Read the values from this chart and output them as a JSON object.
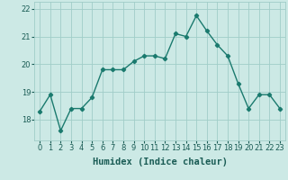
{
  "x": [
    0,
    1,
    2,
    3,
    4,
    5,
    6,
    7,
    8,
    9,
    10,
    11,
    12,
    13,
    14,
    15,
    16,
    17,
    18,
    19,
    20,
    21,
    22,
    23
  ],
  "y": [
    18.3,
    18.9,
    17.6,
    18.4,
    18.4,
    18.8,
    19.8,
    19.8,
    19.8,
    20.1,
    20.3,
    20.3,
    20.2,
    21.1,
    21.0,
    21.75,
    21.2,
    20.7,
    20.3,
    19.3,
    18.4,
    18.9,
    18.9,
    18.4
  ],
  "line_color": "#1a7a6e",
  "marker": "D",
  "marker_size": 2.2,
  "bg_color": "#cce9e5",
  "grid_color": "#a0cdc8",
  "xlabel": "Humidex (Indice chaleur)",
  "xlabel_fontsize": 7.5,
  "ylim": [
    17.25,
    22.25
  ],
  "xlim": [
    -0.5,
    23.5
  ],
  "yticks": [
    18,
    19,
    20,
    21,
    22
  ],
  "xticks": [
    0,
    1,
    2,
    3,
    4,
    5,
    6,
    7,
    8,
    9,
    10,
    11,
    12,
    13,
    14,
    15,
    16,
    17,
    18,
    19,
    20,
    21,
    22,
    23
  ],
  "tick_fontsize": 6,
  "line_width": 1.0
}
